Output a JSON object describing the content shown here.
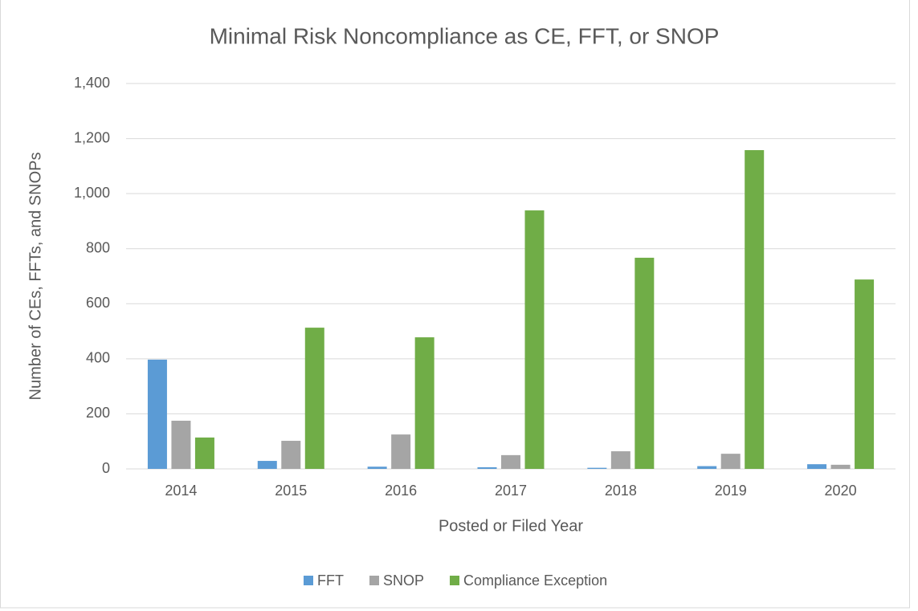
{
  "chart_data": {
    "type": "bar",
    "title": "Minimal Risk Noncompliance as CE, FFT, or SNOP",
    "xlabel": "Posted or Filed Year",
    "ylabel": "Number of CEs, FFTs, and SNOPs",
    "categories": [
      "2014",
      "2015",
      "2016",
      "2017",
      "2018",
      "2019",
      "2020"
    ],
    "series": [
      {
        "name": "FFT",
        "color": "#5b9bd5",
        "values": [
          397,
          29,
          8,
          6,
          4,
          10,
          17
        ]
      },
      {
        "name": "SNOP",
        "color": "#a5a5a5",
        "values": [
          175,
          102,
          125,
          50,
          64,
          55,
          15
        ]
      },
      {
        "name": "Compliance Exception",
        "color": "#70ad47",
        "values": [
          114,
          513,
          478,
          939,
          767,
          1158,
          688
        ]
      }
    ],
    "ylim": [
      0,
      1400
    ],
    "yticks": [
      0,
      200,
      400,
      600,
      800,
      {
        "value": 1000,
        "label": "1,000"
      },
      {
        "value": 1200,
        "label": "1,200"
      },
      {
        "value": 1400,
        "label": "1,400"
      }
    ],
    "grid": true,
    "legend": "bottom"
  }
}
